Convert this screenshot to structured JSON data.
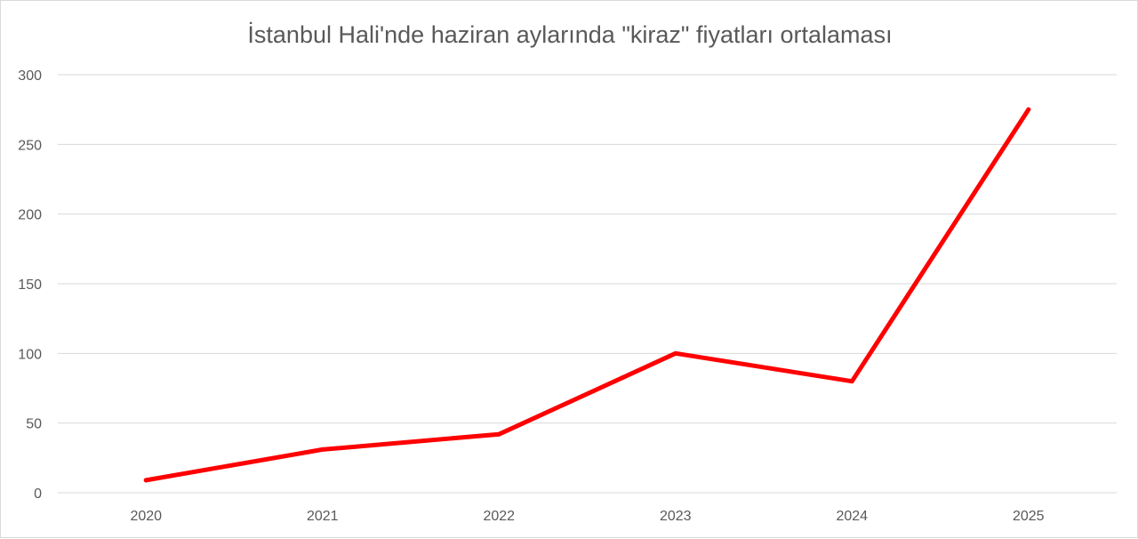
{
  "colors": {
    "series_line": "#ff0000",
    "gridline": "#d9d9d9",
    "text": "#595959",
    "background": "#ffffff"
  },
  "chart_data": {
    "type": "line",
    "title": "İstanbul Hali'nde haziran aylarında \"kiraz\" fiyatları ortalaması",
    "xlabel": "",
    "ylabel": "",
    "categories": [
      "2020",
      "2021",
      "2022",
      "2023",
      "2024",
      "2025"
    ],
    "series": [
      {
        "values": [
          9,
          31,
          42,
          100,
          80,
          275
        ]
      }
    ],
    "ylim": [
      0,
      300
    ],
    "yticks": [
      0,
      50,
      100,
      150,
      200,
      250,
      300
    ],
    "grid": true,
    "legend": "none"
  }
}
